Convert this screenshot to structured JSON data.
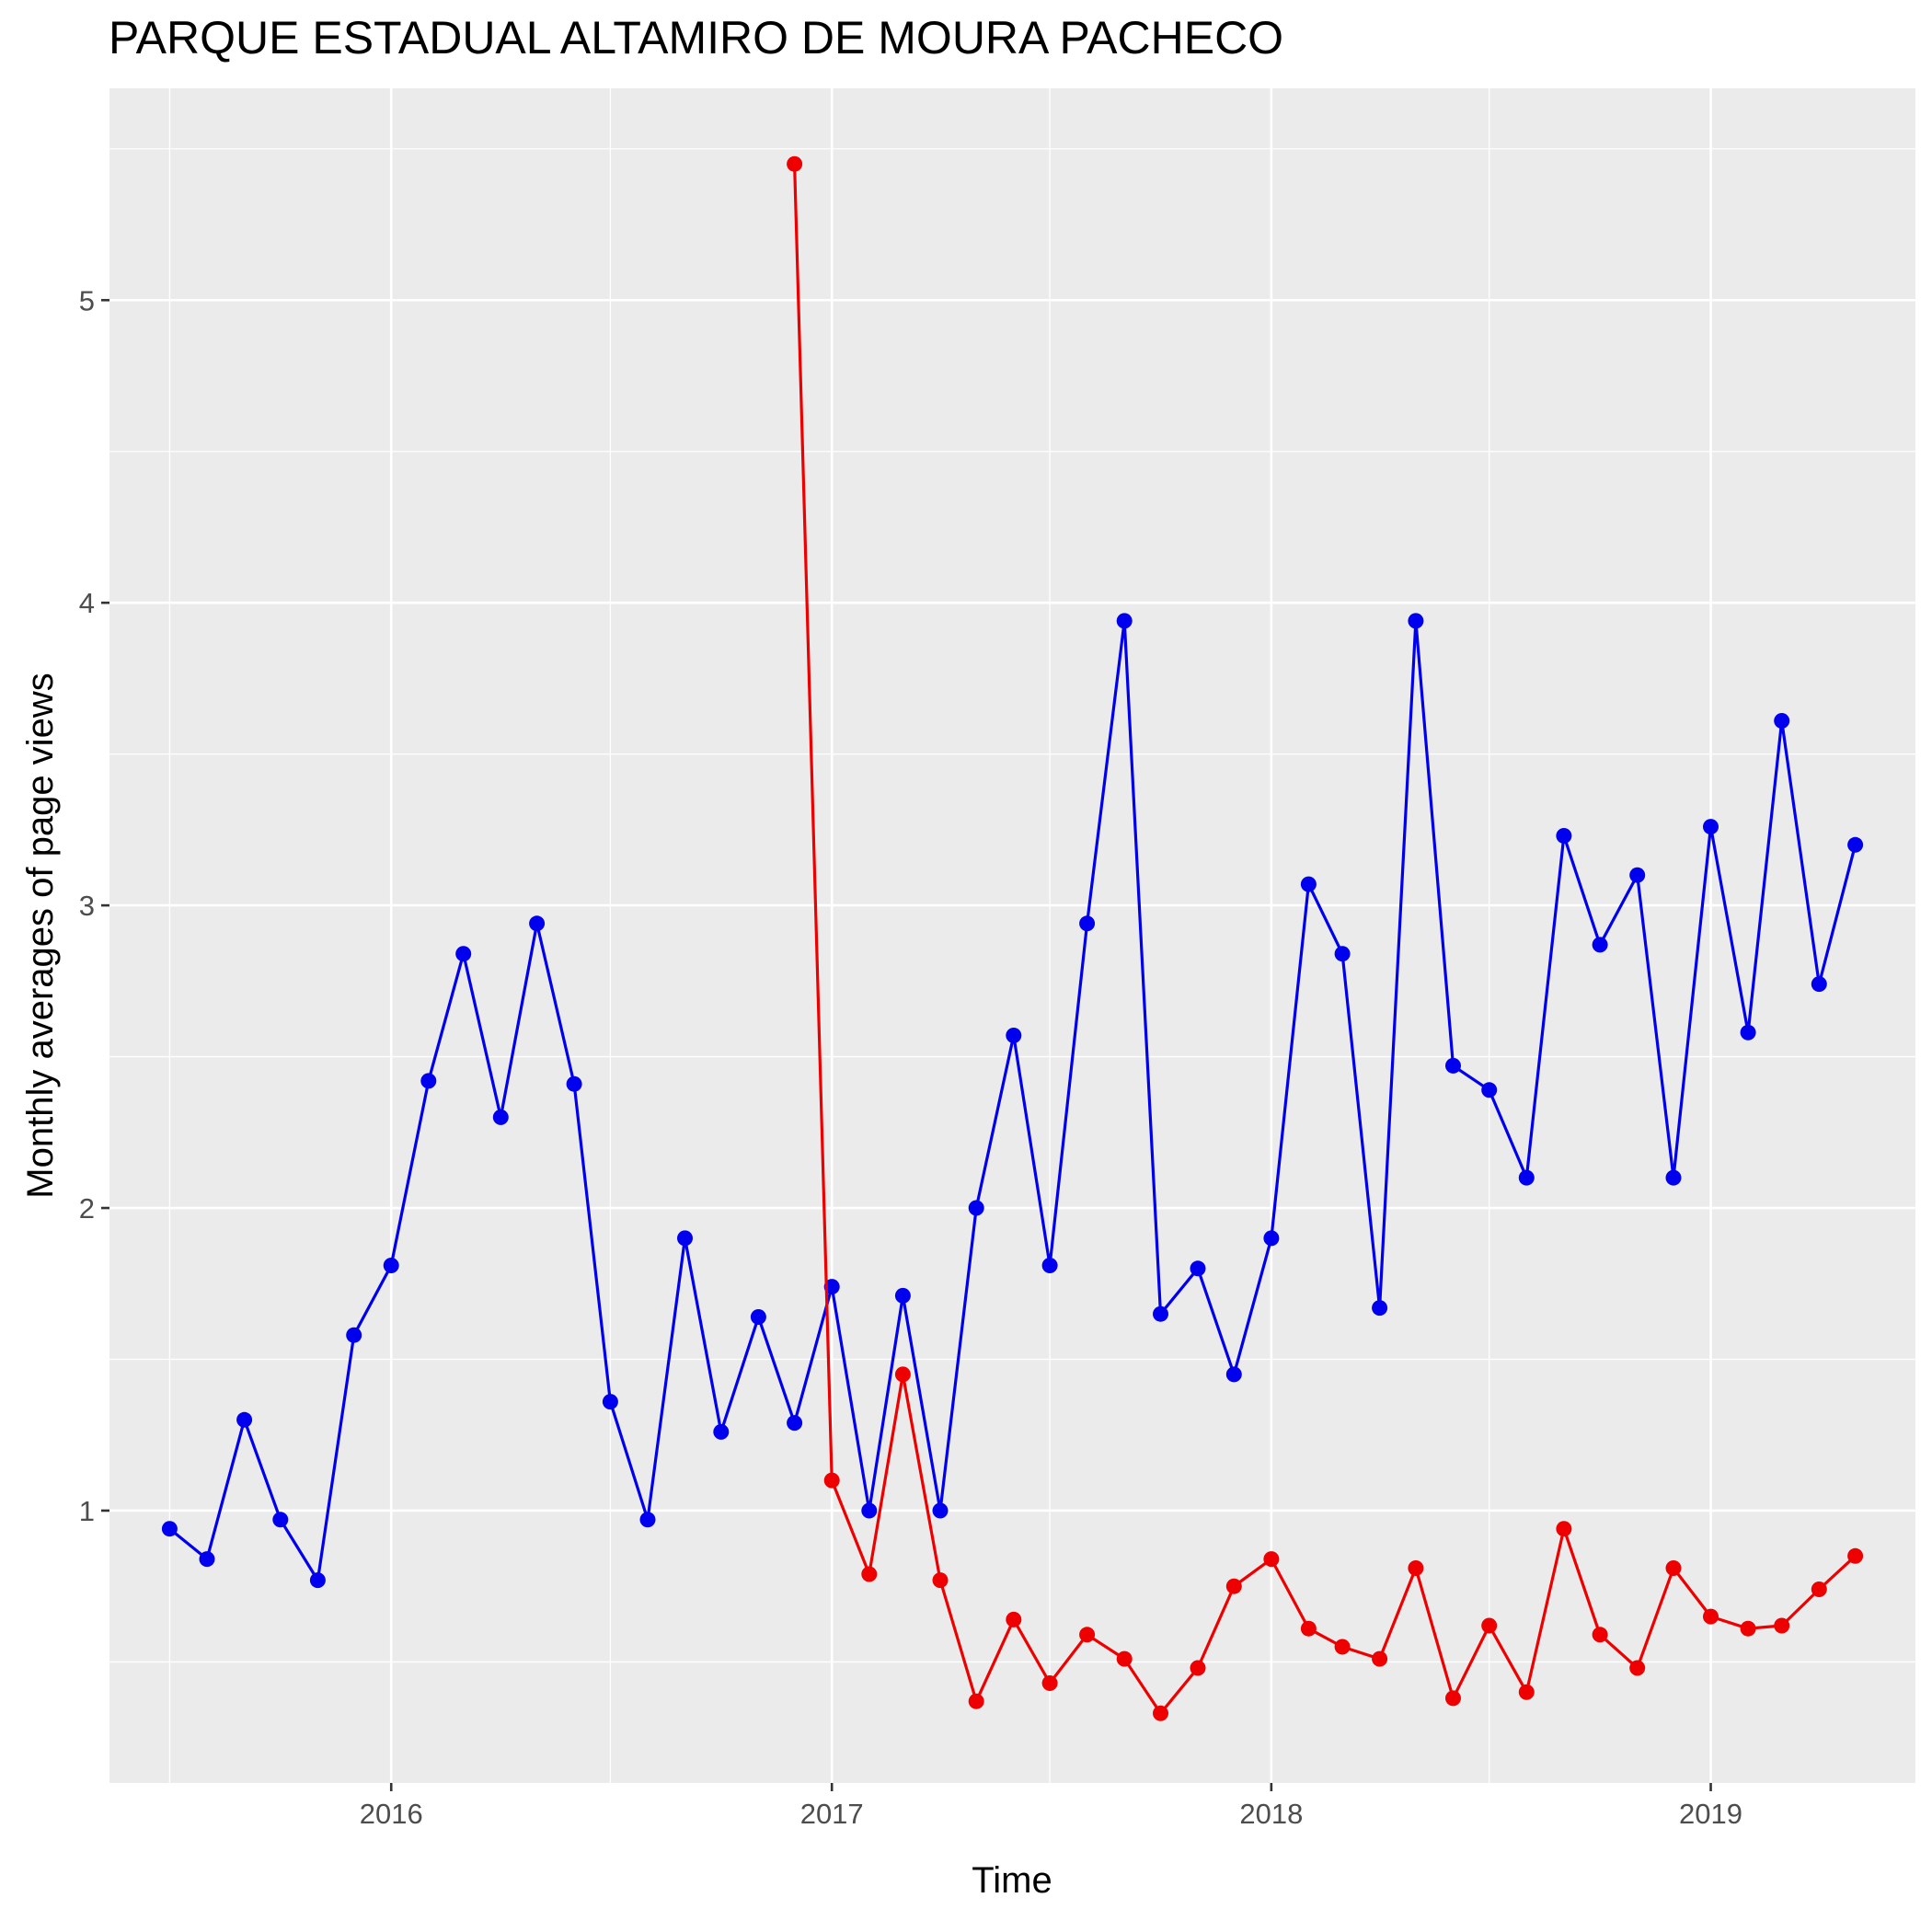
{
  "chart_data": {
    "type": "line",
    "title": "PARQUE ESTADUAL ALTAMIRO DE MOURA PACHECO",
    "xlabel": "Time",
    "ylabel": "Monthly averages of page views",
    "x_tick_labels": [
      "2016",
      "2017",
      "2018",
      "2019"
    ],
    "y_tick_labels": [
      "1",
      "2",
      "3",
      "4",
      "5"
    ],
    "xlim": [
      "2015-05-12",
      "2019-06-20"
    ],
    "ylim": [
      0.1,
      5.7
    ],
    "grid": true,
    "legend": "none",
    "series": [
      {
        "color": "#0000ee",
        "points": [
          [
            "2015-07-01",
            0.94
          ],
          [
            "2015-08-01",
            0.84
          ],
          [
            "2015-09-01",
            1.3
          ],
          [
            "2015-10-01",
            0.97
          ],
          [
            "2015-11-01",
            0.77
          ],
          [
            "2015-12-01",
            1.58
          ],
          [
            "2016-01-01",
            1.81
          ],
          [
            "2016-02-01",
            2.42
          ],
          [
            "2016-03-01",
            2.84
          ],
          [
            "2016-04-01",
            2.3
          ],
          [
            "2016-05-01",
            2.94
          ],
          [
            "2016-06-01",
            2.41
          ],
          [
            "2016-07-01",
            1.36
          ],
          [
            "2016-08-01",
            0.97
          ],
          [
            "2016-09-01",
            1.9
          ],
          [
            "2016-10-01",
            1.26
          ],
          [
            "2016-11-01",
            1.64
          ],
          [
            "2016-12-01",
            1.29
          ],
          [
            "2017-01-01",
            1.74
          ],
          [
            "2017-02-01",
            1.0
          ],
          [
            "2017-03-01",
            1.71
          ],
          [
            "2017-04-01",
            1.0
          ],
          [
            "2017-05-01",
            2.0
          ],
          [
            "2017-06-01",
            2.57
          ],
          [
            "2017-07-01",
            1.81
          ],
          [
            "2017-08-01",
            2.94
          ],
          [
            "2017-09-01",
            3.94
          ],
          [
            "2017-10-01",
            1.65
          ],
          [
            "2017-11-01",
            1.8
          ],
          [
            "2017-12-01",
            1.45
          ],
          [
            "2018-01-01",
            1.9
          ],
          [
            "2018-02-01",
            3.07
          ],
          [
            "2018-03-01",
            2.84
          ],
          [
            "2018-04-01",
            1.67
          ],
          [
            "2018-05-01",
            3.94
          ],
          [
            "2018-06-01",
            2.47
          ],
          [
            "2018-07-01",
            2.39
          ],
          [
            "2018-08-01",
            2.1
          ],
          [
            "2018-09-01",
            3.23
          ],
          [
            "2018-10-01",
            2.87
          ],
          [
            "2018-11-01",
            3.1
          ],
          [
            "2018-12-01",
            2.1
          ],
          [
            "2019-01-01",
            3.26
          ],
          [
            "2019-02-01",
            2.58
          ],
          [
            "2019-03-01",
            3.61
          ],
          [
            "2019-04-01",
            2.74
          ],
          [
            "2019-05-01",
            3.2
          ]
        ]
      },
      {
        "color": "#ee0000",
        "points": [
          [
            "2016-12-01",
            5.45
          ],
          [
            "2017-01-01",
            1.1
          ],
          [
            "2017-02-01",
            0.79
          ],
          [
            "2017-03-01",
            1.45
          ],
          [
            "2017-04-01",
            0.77
          ],
          [
            "2017-05-01",
            0.37
          ],
          [
            "2017-06-01",
            0.64
          ],
          [
            "2017-07-01",
            0.43
          ],
          [
            "2017-08-01",
            0.59
          ],
          [
            "2017-09-01",
            0.51
          ],
          [
            "2017-10-01",
            0.33
          ],
          [
            "2017-11-01",
            0.48
          ],
          [
            "2017-12-01",
            0.75
          ],
          [
            "2018-01-01",
            0.84
          ],
          [
            "2018-02-01",
            0.61
          ],
          [
            "2018-03-01",
            0.55
          ],
          [
            "2018-04-01",
            0.51
          ],
          [
            "2018-05-01",
            0.81
          ],
          [
            "2018-06-01",
            0.38
          ],
          [
            "2018-07-01",
            0.62
          ],
          [
            "2018-08-01",
            0.4
          ],
          [
            "2018-09-01",
            0.94
          ],
          [
            "2018-10-01",
            0.59
          ],
          [
            "2018-11-01",
            0.48
          ],
          [
            "2018-12-01",
            0.81
          ],
          [
            "2019-01-01",
            0.65
          ],
          [
            "2019-02-01",
            0.61
          ],
          [
            "2019-03-01",
            0.62
          ],
          [
            "2019-04-01",
            0.74
          ],
          [
            "2019-05-01",
            0.85
          ]
        ]
      }
    ]
  }
}
